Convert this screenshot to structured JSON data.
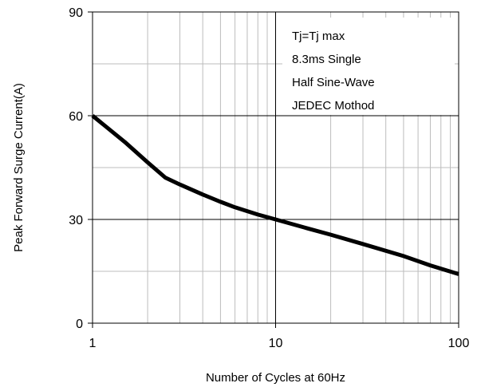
{
  "chart_data": {
    "type": "line",
    "title": "",
    "xlabel": "Number of Cycles at 60Hz",
    "ylabel": "Peak Forward Surge Current(A)",
    "x_scale": "log",
    "xlim": [
      1,
      100
    ],
    "ylim": [
      0,
      90
    ],
    "x_ticks": [
      {
        "value": 1,
        "label": "1"
      },
      {
        "value": 10,
        "label": "10"
      },
      {
        "value": 100,
        "label": "100"
      }
    ],
    "y_ticks": [
      {
        "value": 0,
        "label": "0"
      },
      {
        "value": 30,
        "label": "30"
      },
      {
        "value": 60,
        "label": "60"
      },
      {
        "value": 90,
        "label": "90"
      }
    ],
    "y_minor_gridlines": [
      15,
      45,
      75
    ],
    "grid": true,
    "annotation": [
      "Tj=Tj max",
      "8.3ms Single",
      "Half Sine-Wave",
      "JEDEC Mothod"
    ],
    "series": [
      {
        "color": "#000000",
        "x": [
          1,
          1.5,
          2,
          2.5,
          3,
          4,
          5,
          6,
          8,
          10,
          15,
          20,
          30,
          50,
          70,
          100
        ],
        "y": [
          60,
          52.4,
          46.5,
          42.1,
          40.1,
          37.2,
          35.1,
          33.5,
          31.4,
          30.0,
          27.4,
          25.6,
          22.9,
          19.4,
          16.7,
          14.2
        ]
      }
    ]
  }
}
